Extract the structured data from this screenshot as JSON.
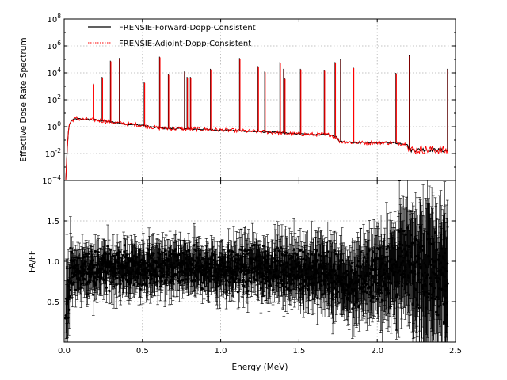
{
  "chart_data": [
    {
      "type": "line",
      "panel": "top",
      "xlabel": "",
      "ylabel": "Effective Dose Rate Spectrum",
      "xlim": [
        0,
        2.5
      ],
      "ylim_log10": [
        -4,
        8
      ],
      "yscale": "log",
      "grid": true,
      "legend_placement": "top-left",
      "y_tick_labels": [
        {
          "base": "10",
          "exp": "8"
        },
        {
          "base": "10",
          "exp": "6"
        },
        {
          "base": "10",
          "exp": "4"
        },
        {
          "base": "10",
          "exp": "2"
        },
        {
          "base": "10",
          "exp": "0"
        },
        {
          "base": "10",
          "exp": "-2"
        },
        {
          "base": "10",
          "exp": "−4"
        }
      ],
      "series": [
        {
          "name": "FRENSIE-Forward-Dopp-Consistent",
          "color": "#000000",
          "style": "solid"
        },
        {
          "name": "FRENSIE-Adjoint-Dopp-Consistent",
          "color": "#ff0000",
          "style": "dotted"
        }
      ],
      "continuum_log10": {
        "x": [
          0.01,
          0.02,
          0.03,
          0.05,
          0.08,
          0.12,
          0.2,
          0.3,
          0.4,
          0.5,
          0.6,
          0.7,
          0.9,
          1.1,
          1.3,
          1.5,
          1.7,
          1.74,
          1.76,
          1.8,
          1.9,
          2.0,
          2.1,
          2.19,
          2.21,
          2.3,
          2.4,
          2.45
        ],
        "y": [
          -4.0,
          -1.5,
          0.1,
          0.5,
          0.6,
          0.55,
          0.5,
          0.35,
          0.2,
          0.1,
          -0.1,
          -0.15,
          -0.2,
          -0.3,
          -0.4,
          -0.55,
          -0.6,
          -0.8,
          -1.1,
          -1.15,
          -1.2,
          -1.2,
          -1.2,
          -1.3,
          -1.75,
          -1.7,
          -1.75,
          -1.8
        ]
      },
      "peaks": [
        {
          "x": 0.186,
          "log10_y": 3.2
        },
        {
          "x": 0.242,
          "log10_y": 3.7
        },
        {
          "x": 0.295,
          "log10_y": 4.9
        },
        {
          "x": 0.352,
          "log10_y": 5.1
        },
        {
          "x": 0.511,
          "log10_y": 3.3
        },
        {
          "x": 0.609,
          "log10_y": 5.2
        },
        {
          "x": 0.665,
          "log10_y": 3.9
        },
        {
          "x": 0.768,
          "log10_y": 4.1
        },
        {
          "x": 0.785,
          "log10_y": 3.7
        },
        {
          "x": 0.806,
          "log10_y": 3.7
        },
        {
          "x": 0.934,
          "log10_y": 4.3
        },
        {
          "x": 1.12,
          "log10_y": 5.1
        },
        {
          "x": 1.238,
          "log10_y": 4.5
        },
        {
          "x": 1.281,
          "log10_y": 4.1
        },
        {
          "x": 1.378,
          "log10_y": 4.8
        },
        {
          "x": 1.401,
          "log10_y": 4.3
        },
        {
          "x": 1.408,
          "log10_y": 3.6
        },
        {
          "x": 1.509,
          "log10_y": 4.3
        },
        {
          "x": 1.661,
          "log10_y": 4.2
        },
        {
          "x": 1.73,
          "log10_y": 4.8
        },
        {
          "x": 1.765,
          "log10_y": 5.0
        },
        {
          "x": 1.847,
          "log10_y": 4.4
        },
        {
          "x": 2.119,
          "log10_y": 4.0
        },
        {
          "x": 2.204,
          "log10_y": 5.3
        },
        {
          "x": 2.448,
          "log10_y": 4.3
        }
      ]
    },
    {
      "type": "scatter",
      "panel": "bottom",
      "xlabel": "Energy (MeV)",
      "ylabel": "FA/FF",
      "xlim": [
        0,
        2.5
      ],
      "ylim": [
        0,
        2.0
      ],
      "x_tick_labels": [
        "0.0",
        "0.5",
        "1.0",
        "1.5",
        "2.0",
        "2.5"
      ],
      "x_ticks": [
        0,
        0.5,
        1.0,
        1.5,
        2.0,
        2.5
      ],
      "y_tick_labels": [
        "0.5",
        "1.0",
        "1.5"
      ],
      "y_ticks": [
        0.5,
        1.0,
        1.5
      ],
      "grid": true,
      "marker_color": "#000000",
      "trend": {
        "x": [
          0.01,
          0.03,
          0.06,
          0.1,
          0.3,
          0.6,
          1.0,
          1.4,
          1.7,
          1.8,
          2.0,
          2.2,
          2.3,
          2.4,
          2.45
        ],
        "center": [
          0.4,
          0.75,
          0.85,
          0.88,
          0.92,
          0.92,
          0.92,
          0.9,
          0.85,
          0.7,
          0.85,
          0.95,
          0.9,
          0.85,
          0.7
        ],
        "spread": [
          0.3,
          0.25,
          0.2,
          0.18,
          0.17,
          0.17,
          0.18,
          0.18,
          0.2,
          0.2,
          0.25,
          0.3,
          0.35,
          0.35,
          0.35
        ],
        "error": [
          0.4,
          0.3,
          0.2,
          0.2,
          0.2,
          0.2,
          0.2,
          0.25,
          0.3,
          0.3,
          0.35,
          0.5,
          0.6,
          0.6,
          0.6
        ]
      },
      "points": 1400
    }
  ]
}
